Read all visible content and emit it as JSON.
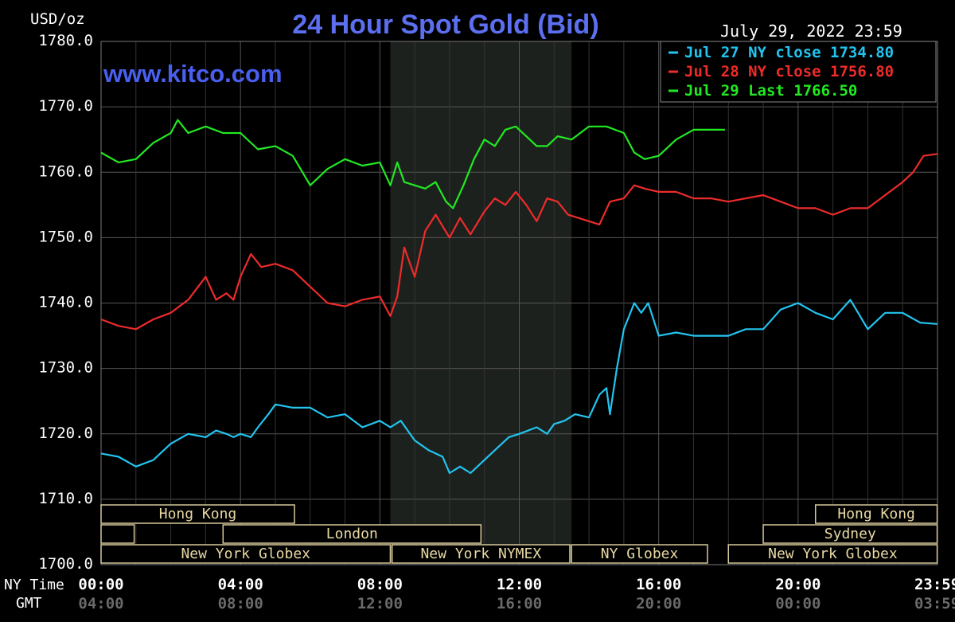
{
  "chart_data": {
    "type": "line",
    "title": "24 Hour Spot Gold (Bid)",
    "ylabel": "USD/oz",
    "watermark": "www.kitco.com",
    "timestamp": "July 29, 2022 23:59",
    "ylim": [
      1700,
      1780
    ],
    "y_ticks": [
      "1780.0",
      "1770.0",
      "1760.0",
      "1750.0",
      "1740.0",
      "1730.0",
      "1720.0",
      "1710.0",
      "1700.0"
    ],
    "xlim": [
      0,
      24
    ],
    "x_axis": {
      "ny_label": "NY Time",
      "gmt_label": "GMT",
      "ny_ticks": [
        "00:00",
        "04:00",
        "08:00",
        "12:00",
        "16:00",
        "20:00",
        "23:59"
      ],
      "gmt_ticks": [
        "04:00",
        "08:00",
        "12:00",
        "16:00",
        "20:00",
        "00:00",
        "03:59"
      ]
    },
    "grid": true,
    "legend_position": "top-right",
    "shaded_session": {
      "label": "New York NYMEX",
      "start": 8.3,
      "end": 13.5
    },
    "sessions": [
      {
        "label": "Hong Kong",
        "row": 0,
        "start": 0,
        "end": 5.55
      },
      {
        "label": "",
        "row": 1,
        "start": 0,
        "end": 0.95
      },
      {
        "label": "London",
        "row": 1,
        "start": 3.5,
        "end": 10.9
      },
      {
        "label": "New York Globex",
        "row": 2,
        "start": 0,
        "end": 8.3
      },
      {
        "label": "New York NYMEX",
        "row": 2,
        "start": 8.35,
        "end": 13.45
      },
      {
        "label": "NY Globex",
        "row": 2,
        "start": 13.5,
        "end": 17.4
      },
      {
        "label": "Hong Kong",
        "row": 0,
        "start": 20.5,
        "end": 23.99
      },
      {
        "label": "Sydney",
        "row": 1,
        "start": 19.0,
        "end": 23.99
      },
      {
        "label": "New York Globex",
        "row": 2,
        "start": 18.0,
        "end": 23.99
      }
    ],
    "series": [
      {
        "name": "Jul 27 NY close 1734.80",
        "color": "#22c4f0",
        "x": [
          0,
          0.5,
          1,
          1.5,
          2,
          2.5,
          3,
          3.3,
          3.6,
          3.8,
          4,
          4.3,
          4.5,
          4.8,
          5,
          5.5,
          6,
          6.5,
          7,
          7.5,
          8,
          8.3,
          8.6,
          9,
          9.4,
          9.8,
          10,
          10.3,
          10.6,
          11,
          11.4,
          11.7,
          12,
          12.5,
          12.8,
          13,
          13.3,
          13.6,
          14,
          14.3,
          14.5,
          14.6,
          14.8,
          15,
          15.3,
          15.5,
          15.7,
          16,
          16.5,
          17,
          17.5,
          18,
          18.5,
          19,
          19.5,
          20,
          20.5,
          21,
          21.5,
          22,
          22.5,
          23,
          23.5,
          23.99
        ],
        "values": [
          1717,
          1716.5,
          1715,
          1716,
          1718.5,
          1720,
          1719.5,
          1720.5,
          1720,
          1719.5,
          1720,
          1719.5,
          1721,
          1723,
          1724.5,
          1724,
          1724,
          1722.5,
          1723,
          1721,
          1722,
          1721,
          1722,
          1719,
          1717.5,
          1716.5,
          1714,
          1715,
          1714,
          1716,
          1718,
          1719.5,
          1720,
          1721,
          1720,
          1721.5,
          1722,
          1723,
          1722.5,
          1726,
          1727,
          1723,
          1730,
          1736,
          1740,
          1738.5,
          1740,
          1735,
          1735.5,
          1735,
          1735,
          1735,
          1736,
          1736,
          1739,
          1740,
          1738.5,
          1737.5,
          1740.5,
          1736,
          1738.5,
          1738.5,
          1737,
          1736.8
        ]
      },
      {
        "name": "Jul 28 NY close 1756.80",
        "color": "#ee2b2b",
        "x": [
          0,
          0.5,
          1,
          1.5,
          2,
          2.5,
          3,
          3.3,
          3.6,
          3.8,
          4,
          4.3,
          4.6,
          5,
          5.5,
          6,
          6.5,
          7,
          7.5,
          8,
          8.3,
          8.5,
          8.7,
          9,
          9.3,
          9.6,
          10,
          10.3,
          10.6,
          11,
          11.3,
          11.6,
          11.9,
          12.2,
          12.5,
          12.8,
          13.1,
          13.4,
          13.7,
          14,
          14.3,
          14.6,
          15,
          15.3,
          15.6,
          16,
          16.5,
          17,
          17.5,
          18,
          18.5,
          19,
          19.5,
          20,
          20.5,
          21,
          21.5,
          22,
          22.5,
          23,
          23.3,
          23.6,
          23.99
        ],
        "values": [
          1737.5,
          1736.5,
          1736,
          1737.5,
          1738.5,
          1740.5,
          1744,
          1740.5,
          1741.5,
          1740.5,
          1744,
          1747.5,
          1745.5,
          1746,
          1745,
          1742.5,
          1740,
          1739.5,
          1740.5,
          1741,
          1738,
          1741,
          1748.5,
          1744,
          1751,
          1753.5,
          1750,
          1753,
          1750.5,
          1754,
          1756,
          1755,
          1757,
          1755,
          1752.5,
          1756,
          1755.5,
          1753.5,
          1753,
          1752.5,
          1752,
          1755.5,
          1756,
          1758,
          1757.5,
          1757,
          1757,
          1756,
          1756,
          1755.5,
          1756,
          1756.5,
          1755.5,
          1754.5,
          1754.5,
          1753.5,
          1754.5,
          1754.5,
          1756.5,
          1758.5,
          1760,
          1762.5,
          1762.8
        ]
      },
      {
        "name": "Jul 29 Last 1766.50",
        "color": "#22e822",
        "x": [
          0,
          0.5,
          1,
          1.5,
          2,
          2.2,
          2.5,
          3,
          3.5,
          4,
          4.5,
          5,
          5.5,
          6,
          6.5,
          7,
          7.5,
          8,
          8.3,
          8.5,
          8.7,
          9,
          9.3,
          9.6,
          9.9,
          10.1,
          10.4,
          10.7,
          11,
          11.3,
          11.6,
          11.9,
          12.2,
          12.5,
          12.8,
          13.1,
          13.5,
          14,
          14.5,
          15,
          15.3,
          15.6,
          16,
          16.5,
          17,
          17.5,
          17.9
        ],
        "values": [
          1763,
          1761.5,
          1762,
          1764.5,
          1766,
          1768,
          1766,
          1767,
          1766,
          1766,
          1763.5,
          1764,
          1762.5,
          1758,
          1760.5,
          1762,
          1761,
          1761.5,
          1758,
          1761.5,
          1758.5,
          1758,
          1757.5,
          1758.5,
          1755.5,
          1754.5,
          1758,
          1762,
          1765,
          1764,
          1766.5,
          1767,
          1765.5,
          1764,
          1764,
          1765.5,
          1765,
          1767,
          1767,
          1766,
          1763,
          1762,
          1762.5,
          1765,
          1766.5,
          1766.5,
          1766.5
        ]
      }
    ]
  }
}
